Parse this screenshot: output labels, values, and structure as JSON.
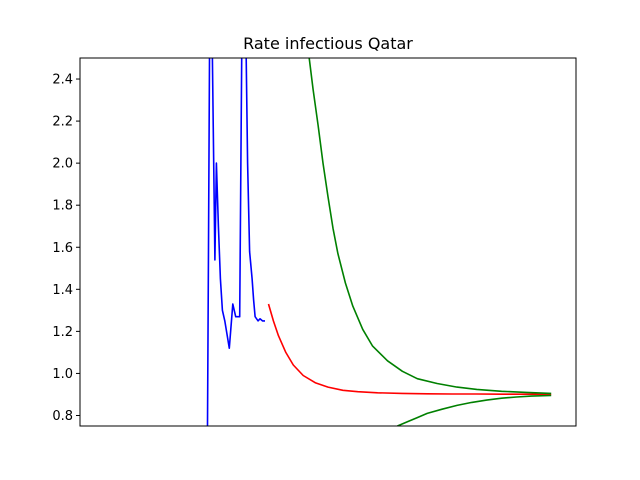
{
  "chart_data": {
    "type": "line",
    "title": "Rate infectious Qatar",
    "xlabel": "",
    "ylabel": "",
    "xlim": [
      0,
      100
    ],
    "ylim": [
      0.75,
      2.5
    ],
    "x_ticks_visible": false,
    "yticks": [
      "0.8",
      "1.0",
      "1.2",
      "1.4",
      "1.6",
      "1.8",
      "2.0",
      "2.2",
      "2.4"
    ],
    "grid": false,
    "series": [
      {
        "color": "#0000ff",
        "x": [
          25.7,
          25.9,
          26.1,
          26.4,
          26.7,
          26.95,
          27.2,
          27.5,
          27.9,
          28.3,
          28.7,
          29.2,
          30.1,
          30.8,
          31.4,
          32.2,
          32.6,
          33.1,
          33.5,
          33.8,
          34.2,
          34.7,
          35.0,
          35.3,
          35.6,
          35.9,
          36.3,
          36.8,
          37.3
        ],
        "y": [
          0.75,
          1.6,
          2.5,
          2.6,
          2.5,
          2.0,
          1.54,
          2.0,
          1.7,
          1.45,
          1.3,
          1.25,
          1.12,
          1.33,
          1.27,
          1.27,
          2.5,
          2.6,
          2.5,
          2.0,
          1.58,
          1.45,
          1.35,
          1.27,
          1.26,
          1.25,
          1.26,
          1.25,
          1.25
        ]
      },
      {
        "color": "#ff0000",
        "x": [
          38.0,
          39.0,
          40.0,
          41.5,
          43.0,
          45.0,
          47.5,
          50.0,
          53.0,
          56.0,
          60.0,
          65.0,
          70.0,
          75.0,
          80.0,
          85.0,
          90.0,
          95.0
        ],
        "y": [
          1.33,
          1.25,
          1.18,
          1.1,
          1.04,
          0.99,
          0.955,
          0.935,
          0.92,
          0.913,
          0.908,
          0.905,
          0.903,
          0.902,
          0.902,
          0.901,
          0.901,
          0.9
        ]
      },
      {
        "color": "#008000",
        "x": [
          46.2,
          47.0,
          48.0,
          49.0,
          50.0,
          51.0,
          52.0,
          53.5,
          55.0,
          57.0,
          59.0,
          62.0,
          65.0,
          68.0,
          72.0,
          76.0,
          80.0,
          85.0,
          90.0,
          95.0
        ],
        "y": [
          2.5,
          2.35,
          2.18,
          2.0,
          1.84,
          1.69,
          1.57,
          1.43,
          1.32,
          1.21,
          1.13,
          1.06,
          1.01,
          0.975,
          0.952,
          0.935,
          0.924,
          0.915,
          0.91,
          0.905
        ]
      },
      {
        "color": "#008000",
        "x": [
          64.0,
          66.0,
          68.0,
          70.0,
          73.0,
          76.0,
          79.0,
          82.0,
          85.0,
          88.0,
          91.0,
          95.0
        ],
        "y": [
          0.75,
          0.77,
          0.79,
          0.81,
          0.83,
          0.848,
          0.862,
          0.873,
          0.882,
          0.888,
          0.892,
          0.895
        ]
      }
    ]
  }
}
